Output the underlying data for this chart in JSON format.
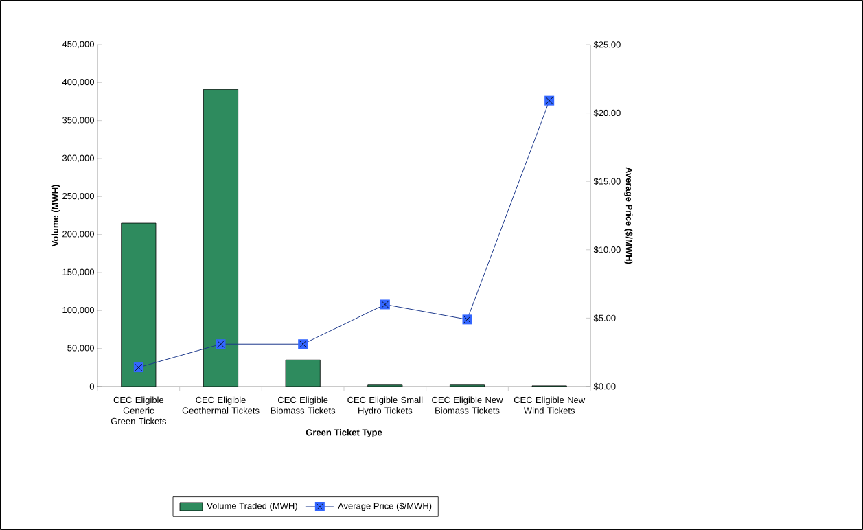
{
  "chart_data": {
    "type": "bar",
    "xlabel": "Green Ticket Type",
    "ylabel": "Volume (MWH)",
    "y2label": "Average Price ($/MWH)",
    "categories": [
      "CEC Eligible Generic Green Tickets",
      "CEC Eligible Geothermal Tickets",
      "CEC Eligible Biomass Tickets",
      "CEC Eligible Small Hydro Tickets",
      "CEC Eligible New Biomass Tickets",
      "CEC Eligible New Wind Tickets"
    ],
    "series": [
      {
        "name": "Volume Traded (MWH)",
        "color": "#2e8b5e",
        "values": [
          215000,
          391000,
          35000,
          2000,
          2000,
          1000
        ]
      },
      {
        "name": "Average Price ($/MWH)",
        "type": "line",
        "axis": "y2",
        "color": "#3366ff",
        "marker": "square",
        "values": [
          1.4,
          3.1,
          3.1,
          6.0,
          4.9,
          20.9
        ]
      }
    ],
    "ylim": [
      0,
      450000
    ],
    "yticks": [
      0,
      {
        "value": 50000,
        "label": "50,000"
      },
      {
        "value": 100000,
        "label": "100,000"
      },
      {
        "value": 150000,
        "label": "150,000"
      },
      {
        "value": 200000,
        "label": "200,000"
      },
      {
        "value": 250000,
        "label": "250,000"
      },
      {
        "value": 300000,
        "label": "300,000"
      },
      {
        "value": 350000,
        "label": "350,000"
      },
      {
        "value": 400000,
        "label": "400,000"
      },
      {
        "value": 450000,
        "label": "450,000"
      }
    ],
    "y2lim": [
      0,
      25
    ],
    "y2ticks": [
      {
        "value": 0,
        "label": "$0.00"
      },
      {
        "value": 5,
        "label": "$5.00"
      },
      {
        "value": 10,
        "label": "$10.00"
      },
      {
        "value": 15,
        "label": "$15.00"
      },
      {
        "value": 20,
        "label": "$20.00"
      },
      {
        "value": 25,
        "label": "$25.00"
      }
    ],
    "grid": false,
    "legend": "bottom"
  }
}
